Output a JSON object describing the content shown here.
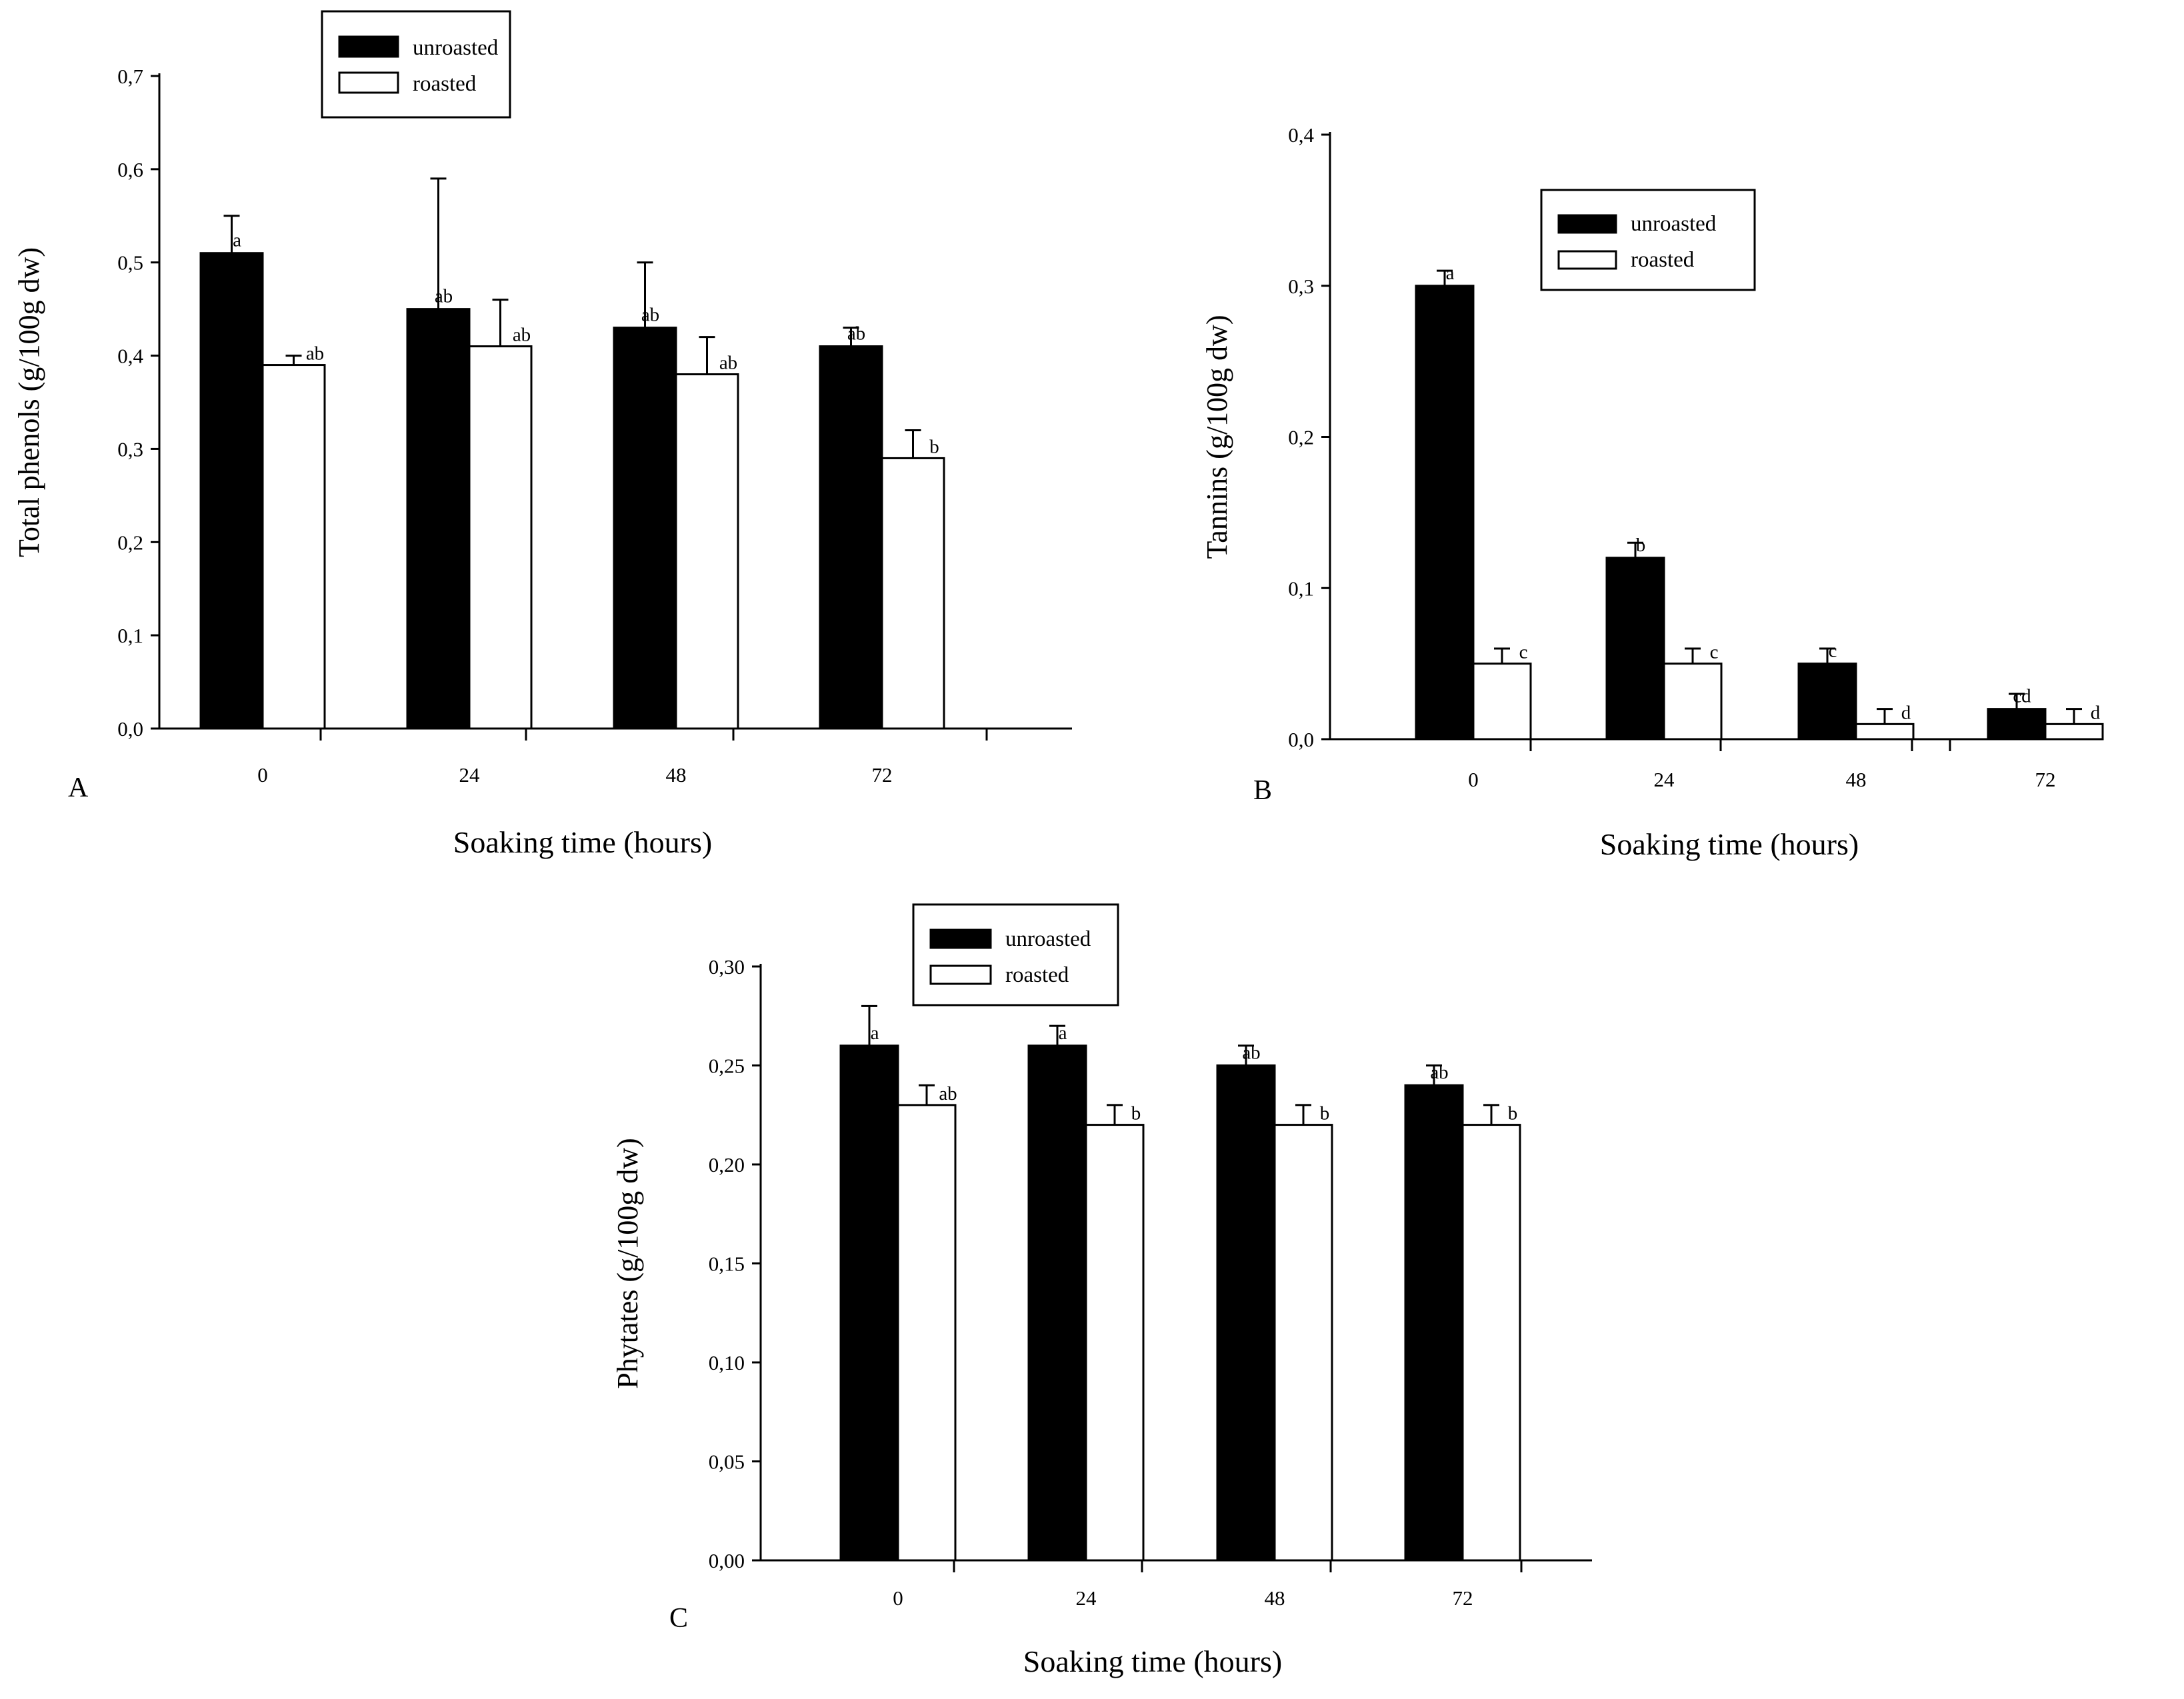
{
  "figure": {
    "colors": {
      "unroasted": "#000000",
      "roasted": "#ffffff",
      "axis": "#000000"
    }
  },
  "chart_data": [
    {
      "panel": "A",
      "type": "bar",
      "title": "",
      "xlabel": "Soaking time (hours)",
      "ylabel": "Total phenols (g/100g dw)",
      "categories": [
        "0",
        "24",
        "48",
        "72"
      ],
      "ylim": [
        0,
        0.7
      ],
      "yticks": [
        0,
        0.1,
        0.2,
        0.3,
        0.4,
        0.5,
        0.6,
        0.7
      ],
      "ytick_labels": [
        "0,0",
        "0,1",
        "0,2",
        "0,3",
        "0,4",
        "0,5",
        "0,6",
        "0,7"
      ],
      "legend": {
        "position": "top-center",
        "entries": [
          "unroasted",
          "roasted"
        ]
      },
      "series": [
        {
          "name": "unroasted",
          "values": [
            0.51,
            0.45,
            0.43,
            0.41
          ],
          "errors": [
            0.04,
            0.14,
            0.07,
            0.02
          ],
          "labels": [
            "a",
            "ab",
            "ab",
            "ab"
          ]
        },
        {
          "name": "roasted",
          "values": [
            0.39,
            0.41,
            0.38,
            0.29
          ],
          "errors": [
            0.01,
            0.05,
            0.04,
            0.03
          ],
          "labels": [
            "ab",
            "ab",
            "ab",
            "b"
          ]
        }
      ]
    },
    {
      "panel": "B",
      "type": "bar",
      "title": "",
      "xlabel": "Soaking time (hours)",
      "ylabel": "Tannins (g/100g dw)",
      "categories": [
        "0",
        "24",
        "48",
        "72"
      ],
      "ylim": [
        0,
        0.4
      ],
      "yticks": [
        0,
        0.1,
        0.2,
        0.3,
        0.4
      ],
      "ytick_labels": [
        "0,0",
        "0,1",
        "0,2",
        "0,3",
        "0,4"
      ],
      "legend": {
        "position": "top-right",
        "entries": [
          "unroasted",
          "roasted"
        ]
      },
      "series": [
        {
          "name": "unroasted",
          "values": [
            0.3,
            0.12,
            0.05,
            0.02
          ],
          "errors": [
            0.01,
            0.01,
            0.01,
            0.01
          ],
          "labels": [
            "a",
            "b",
            "c",
            "cd"
          ]
        },
        {
          "name": "roasted",
          "values": [
            0.05,
            0.05,
            0.01,
            0.01
          ],
          "errors": [
            0.01,
            0.01,
            0.01,
            0.01
          ],
          "labels": [
            "c",
            "c",
            "d",
            "d"
          ]
        }
      ]
    },
    {
      "panel": "C",
      "type": "bar",
      "title": "",
      "xlabel": "Soaking time (hours)",
      "ylabel": "Phytates (g/100g dw)",
      "categories": [
        "0",
        "24",
        "48",
        "72"
      ],
      "ylim": [
        0,
        0.3
      ],
      "yticks": [
        0,
        0.05,
        0.1,
        0.15,
        0.2,
        0.25,
        0.3
      ],
      "ytick_labels": [
        "0,00",
        "0,05",
        "0,10",
        "0,15",
        "0,20",
        "0,25",
        "0,30"
      ],
      "legend": {
        "position": "top-right",
        "entries": [
          "unroasted",
          "roasted"
        ]
      },
      "series": [
        {
          "name": "unroasted",
          "values": [
            0.26,
            0.26,
            0.25,
            0.24
          ],
          "errors": [
            0.02,
            0.01,
            0.01,
            0.01
          ],
          "labels": [
            "a",
            "a",
            "ab",
            "ab"
          ]
        },
        {
          "name": "roasted",
          "values": [
            0.23,
            0.22,
            0.22,
            0.22
          ],
          "errors": [
            0.01,
            0.01,
            0.01,
            0.01
          ],
          "labels": [
            "ab",
            "b",
            "b",
            "b"
          ]
        }
      ]
    }
  ]
}
